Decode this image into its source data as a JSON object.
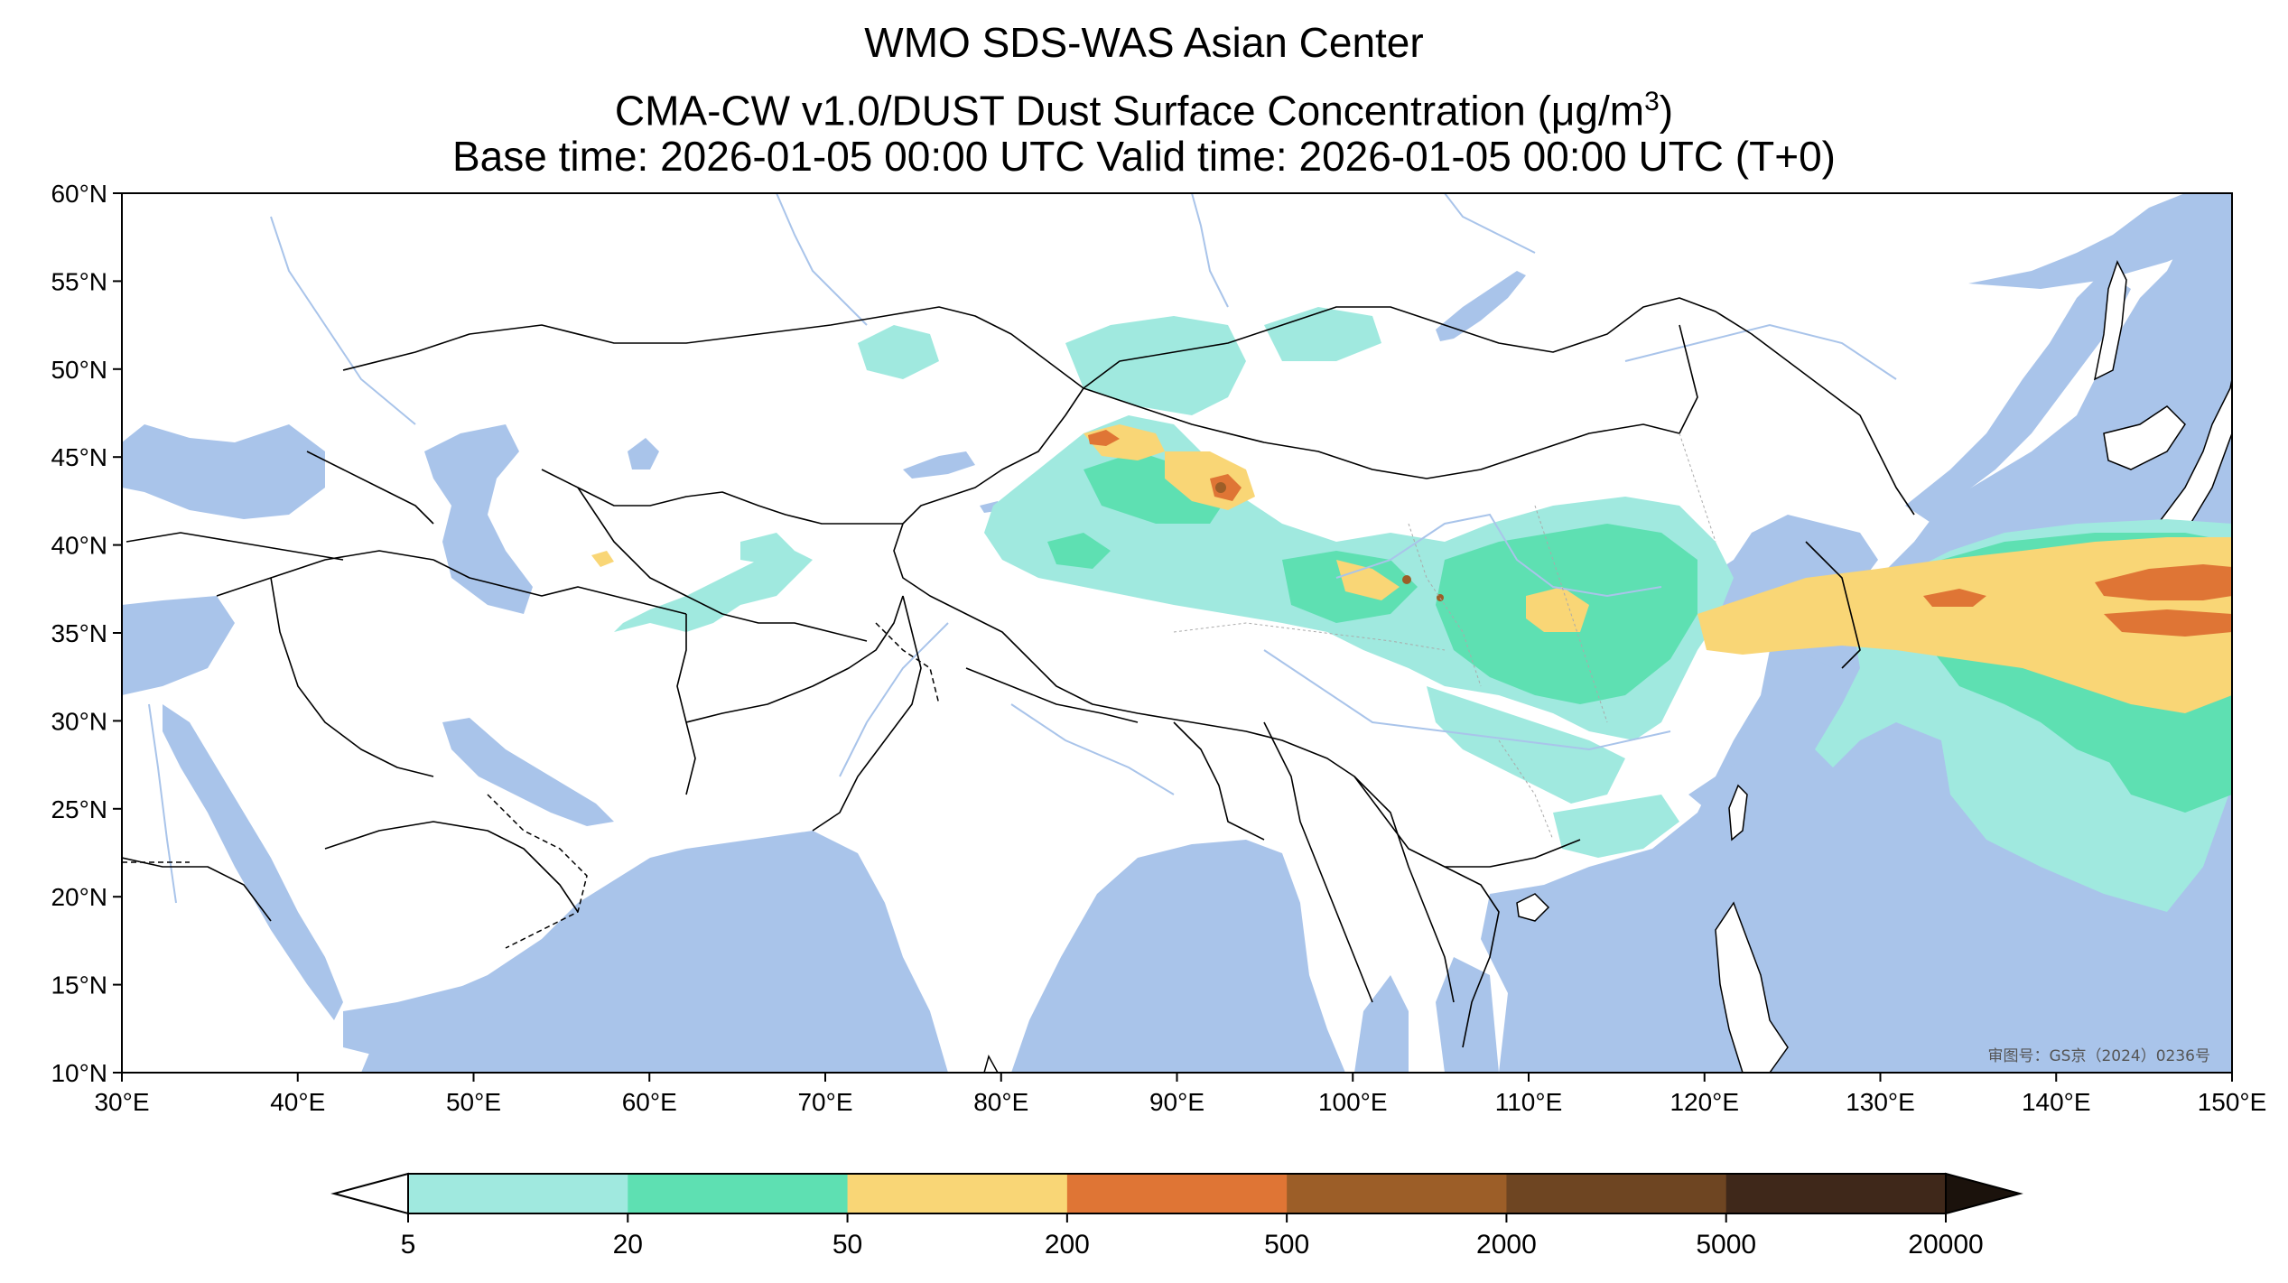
{
  "header": {
    "line1": "WMO SDS-WAS Asian Center",
    "line2_prefix": "CMA-CW v1.0/DUST Dust Surface Concentration (",
    "line2_mu": "μ",
    "line2_unit": "g/m",
    "line2_exp": "3",
    "line2_suffix": ")",
    "line3": "Base time: 2026-01-05 00:00 UTC Valid time: 2026-01-05 00:00 UTC (T+0)"
  },
  "map": {
    "lon_range": [
      30,
      150
    ],
    "lat_range": [
      10,
      60
    ],
    "lon_ticks": [
      "30°E",
      "40°E",
      "50°E",
      "60°E",
      "70°E",
      "80°E",
      "90°E",
      "100°E",
      "110°E",
      "120°E",
      "130°E",
      "140°E",
      "150°E"
    ],
    "lat_ticks": [
      "60°N",
      "55°N",
      "50°N",
      "45°N",
      "40°N",
      "35°N",
      "30°N",
      "25°N",
      "20°N",
      "15°N",
      "10°N"
    ],
    "approval_stamp": "审图号：GS京（2024）0236号",
    "colors": {
      "ocean": "#a9c4ea",
      "land": "#ffffff",
      "border": "#000000",
      "river": "#a9c4ea"
    }
  },
  "colorbar": {
    "labels": [
      "5",
      "20",
      "50",
      "200",
      "500",
      "2000",
      "5000",
      "20000"
    ],
    "colors": [
      "#a0e9df",
      "#5ee0b2",
      "#f9d676",
      "#df7535",
      "#9c5e28",
      "#6e4522",
      "#3f281a"
    ]
  }
}
